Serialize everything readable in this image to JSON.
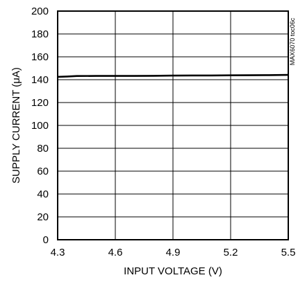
{
  "chart_data": {
    "type": "line",
    "title": "",
    "xlabel": "INPUT VOLTAGE (V)",
    "ylabel": "SUPPLY CURRENT (μA)",
    "xlim": [
      4.3,
      5.5
    ],
    "ylim": [
      0,
      200
    ],
    "x_ticks": [
      4.3,
      4.6,
      4.9,
      5.2,
      5.5
    ],
    "x_tick_labels": [
      "4.3",
      "4.6",
      "4.9",
      "5.2",
      "5.5"
    ],
    "y_ticks": [
      0,
      20,
      40,
      60,
      80,
      100,
      120,
      140,
      160,
      180,
      200
    ],
    "y_tick_labels": [
      "0",
      "20",
      "40",
      "60",
      "80",
      "100",
      "120",
      "140",
      "160",
      "180",
      "200"
    ],
    "grid": true,
    "series": [
      {
        "x": [
          4.3,
          4.35,
          4.4,
          4.5,
          4.6,
          4.7,
          4.8,
          4.9,
          5.0,
          5.1,
          5.2,
          5.3,
          5.4,
          5.5
        ],
        "y": [
          142.5,
          142.8,
          143.2,
          143.3,
          143.3,
          143.3,
          143.4,
          143.6,
          143.7,
          143.7,
          143.8,
          143.9,
          144.0,
          144.2
        ]
      }
    ],
    "annotations": [
      "MAX6070 toc06c"
    ]
  }
}
